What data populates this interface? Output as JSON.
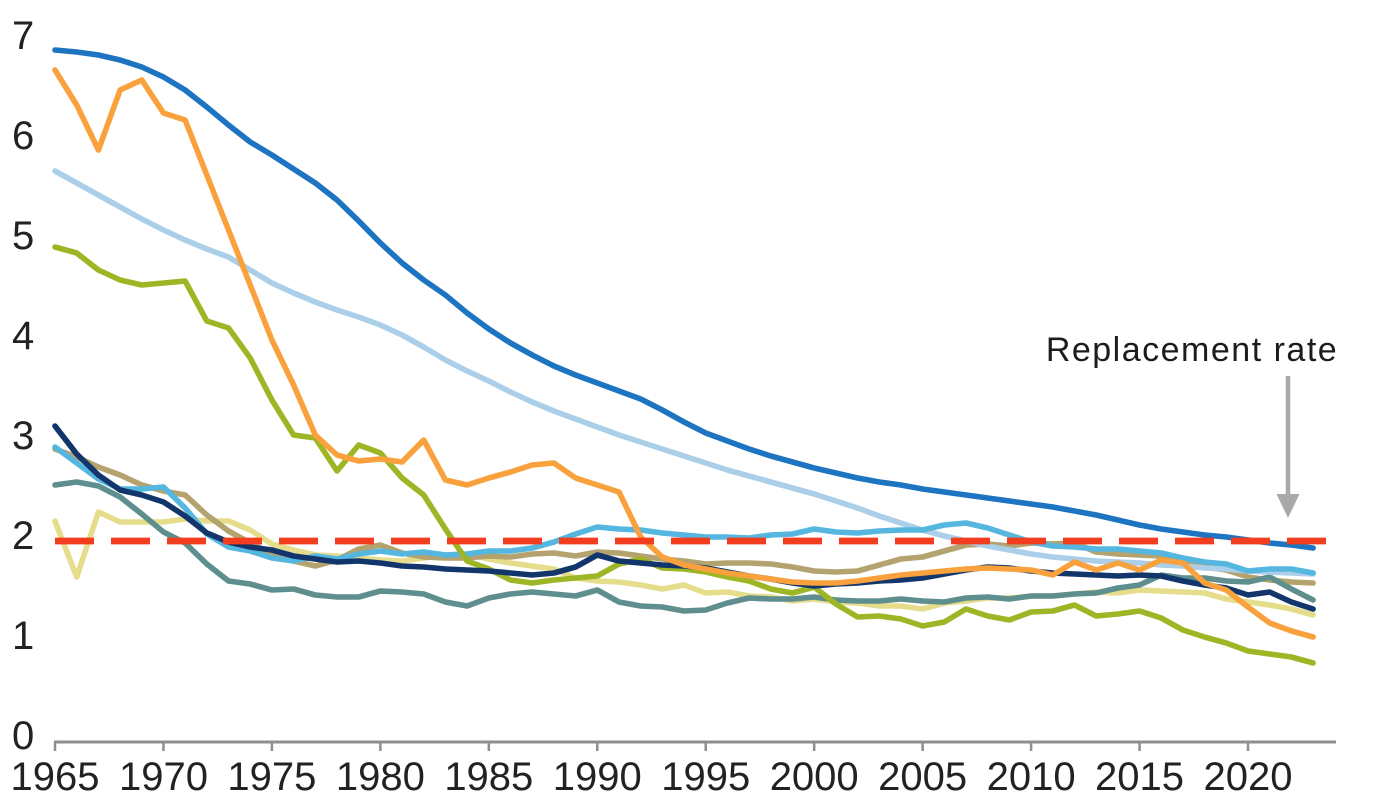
{
  "annotation": {
    "label": "Replacement rate"
  },
  "styles": {
    "background": "#ffffff",
    "axis_color": "#8f8f8f",
    "tick_color": "#8f8f8f",
    "text_color": "#222222",
    "arrow_color": "#a9a9a9",
    "reference_color": "#f23d1f"
  },
  "chart_data": {
    "type": "line",
    "title": "",
    "xlabel": "",
    "ylabel": "",
    "grid": false,
    "legend": "none",
    "ylim": [
      0,
      7
    ],
    "xlim": [
      1965,
      2024
    ],
    "y_ticks": [
      0,
      1,
      2,
      3,
      4,
      5,
      6,
      7
    ],
    "y_tick_labels": [
      "0",
      "1",
      "2",
      "3",
      "4",
      "5",
      "6",
      "7"
    ],
    "x_ticks": [
      1965,
      1970,
      1975,
      1980,
      1985,
      1990,
      1995,
      2000,
      2005,
      2010,
      2015,
      2020
    ],
    "x_tick_labels": [
      "1965",
      "1970",
      "1975",
      "1980",
      "1985",
      "1990",
      "1995",
      "2000",
      "2005",
      "2010",
      "2015",
      "2020"
    ],
    "x_start_year": 1965,
    "x_end_year": 2023,
    "reference_line": {
      "label": "Replacement rate",
      "value": 2.1,
      "color": "#f23d1f",
      "style": "dashed"
    },
    "series": [
      {
        "name": "pale-yellow-line",
        "color": "#e5dd8c",
        "values": [
          2.14,
          1.58,
          2.23,
          2.13,
          2.13,
          2.13,
          2.16,
          2.14,
          2.14,
          2.05,
          1.91,
          1.85,
          1.8,
          1.79,
          1.77,
          1.75,
          1.74,
          1.77,
          1.8,
          1.81,
          1.76,
          1.72,
          1.69,
          1.66,
          1.57,
          1.54,
          1.53,
          1.5,
          1.46,
          1.5,
          1.42,
          1.43,
          1.39,
          1.38,
          1.34,
          1.36,
          1.33,
          1.32,
          1.29,
          1.29,
          1.26,
          1.32,
          1.34,
          1.37,
          1.37,
          1.39,
          1.39,
          1.41,
          1.43,
          1.42,
          1.45,
          1.44,
          1.43,
          1.42,
          1.36,
          1.33,
          1.3,
          1.26,
          1.2
        ]
      },
      {
        "name": "tan-line",
        "color": "#b4a36e",
        "values": [
          2.86,
          2.78,
          2.68,
          2.6,
          2.5,
          2.44,
          2.4,
          2.2,
          2.04,
          1.92,
          1.81,
          1.74,
          1.69,
          1.75,
          1.86,
          1.9,
          1.82,
          1.78,
          1.77,
          1.77,
          1.79,
          1.78,
          1.81,
          1.82,
          1.79,
          1.83,
          1.82,
          1.79,
          1.76,
          1.74,
          1.71,
          1.72,
          1.72,
          1.71,
          1.68,
          1.64,
          1.63,
          1.64,
          1.7,
          1.76,
          1.78,
          1.84,
          1.9,
          1.91,
          1.89,
          1.92,
          1.91,
          1.92,
          1.83,
          1.81,
          1.8,
          1.79,
          1.74,
          1.68,
          1.65,
          1.58,
          1.55,
          1.53,
          1.52
        ]
      },
      {
        "name": "teal-line",
        "color": "#5e8e8e",
        "values": [
          2.5,
          2.53,
          2.49,
          2.38,
          2.21,
          2.03,
          1.92,
          1.71,
          1.54,
          1.51,
          1.45,
          1.46,
          1.4,
          1.38,
          1.38,
          1.44,
          1.43,
          1.41,
          1.33,
          1.29,
          1.37,
          1.41,
          1.43,
          1.41,
          1.39,
          1.45,
          1.33,
          1.29,
          1.28,
          1.24,
          1.25,
          1.32,
          1.37,
          1.36,
          1.36,
          1.38,
          1.35,
          1.34,
          1.34,
          1.36,
          1.34,
          1.33,
          1.37,
          1.38,
          1.36,
          1.39,
          1.39,
          1.41,
          1.42,
          1.47,
          1.5,
          1.6,
          1.57,
          1.57,
          1.54,
          1.53,
          1.58,
          1.46,
          1.35
        ]
      },
      {
        "name": "light-blue-line",
        "color": "#abcfe9",
        "values": [
          5.64,
          5.52,
          5.4,
          5.28,
          5.16,
          5.05,
          4.95,
          4.86,
          4.78,
          4.65,
          4.52,
          4.42,
          4.33,
          4.25,
          4.18,
          4.1,
          4.0,
          3.88,
          3.75,
          3.64,
          3.54,
          3.43,
          3.33,
          3.24,
          3.16,
          3.08,
          3.0,
          2.93,
          2.86,
          2.79,
          2.72,
          2.65,
          2.59,
          2.53,
          2.47,
          2.41,
          2.34,
          2.27,
          2.19,
          2.12,
          2.05,
          1.99,
          1.94,
          1.89,
          1.85,
          1.81,
          1.78,
          1.76,
          1.74,
          1.73,
          1.72,
          1.7,
          1.69,
          1.67,
          1.66,
          1.64,
          1.63,
          1.62,
          1.61
        ]
      },
      {
        "name": "sky-blue-line",
        "color": "#55b6e0",
        "values": [
          2.88,
          2.72,
          2.56,
          2.46,
          2.46,
          2.48,
          2.27,
          2.01,
          1.88,
          1.84,
          1.77,
          1.74,
          1.79,
          1.76,
          1.81,
          1.84,
          1.81,
          1.83,
          1.8,
          1.81,
          1.84,
          1.84,
          1.87,
          1.93,
          2.01,
          2.08,
          2.06,
          2.05,
          2.02,
          2.0,
          1.98,
          1.98,
          1.97,
          2.0,
          2.01,
          2.06,
          2.03,
          2.02,
          2.04,
          2.05,
          2.05,
          2.1,
          2.12,
          2.07,
          2.0,
          1.93,
          1.89,
          1.88,
          1.86,
          1.86,
          1.84,
          1.82,
          1.77,
          1.73,
          1.71,
          1.64,
          1.66,
          1.66,
          1.62
        ]
      },
      {
        "name": "olive-green-line",
        "color": "#9eb625",
        "values": [
          4.88,
          4.82,
          4.65,
          4.55,
          4.5,
          4.52,
          4.54,
          4.14,
          4.07,
          3.77,
          3.35,
          3.0,
          2.97,
          2.64,
          2.9,
          2.82,
          2.57,
          2.4,
          2.06,
          1.74,
          1.66,
          1.55,
          1.52,
          1.55,
          1.57,
          1.59,
          1.71,
          1.76,
          1.67,
          1.66,
          1.63,
          1.58,
          1.54,
          1.46,
          1.42,
          1.48,
          1.31,
          1.18,
          1.19,
          1.16,
          1.09,
          1.13,
          1.26,
          1.19,
          1.15,
          1.23,
          1.24,
          1.3,
          1.19,
          1.21,
          1.24,
          1.17,
          1.05,
          0.98,
          0.92,
          0.84,
          0.81,
          0.78,
          0.72
        ]
      },
      {
        "name": "navy-line",
        "color": "#12366b",
        "values": [
          3.09,
          2.81,
          2.6,
          2.45,
          2.4,
          2.33,
          2.19,
          2.02,
          1.93,
          1.88,
          1.85,
          1.79,
          1.76,
          1.73,
          1.74,
          1.72,
          1.69,
          1.68,
          1.66,
          1.65,
          1.64,
          1.62,
          1.6,
          1.62,
          1.68,
          1.8,
          1.74,
          1.72,
          1.7,
          1.69,
          1.67,
          1.63,
          1.59,
          1.56,
          1.52,
          1.49,
          1.51,
          1.52,
          1.54,
          1.55,
          1.57,
          1.61,
          1.65,
          1.68,
          1.67,
          1.64,
          1.62,
          1.61,
          1.6,
          1.59,
          1.6,
          1.59,
          1.54,
          1.5,
          1.47,
          1.4,
          1.43,
          1.33,
          1.26
        ]
      },
      {
        "name": "orange-line",
        "color": "#f9a13c",
        "values": [
          6.65,
          6.3,
          5.85,
          6.45,
          6.55,
          6.22,
          6.15,
          5.6,
          5.05,
          4.5,
          3.95,
          3.5,
          3.0,
          2.8,
          2.74,
          2.76,
          2.73,
          2.95,
          2.55,
          2.5,
          2.57,
          2.63,
          2.7,
          2.72,
          2.57,
          2.5,
          2.43,
          1.98,
          1.78,
          1.7,
          1.66,
          1.62,
          1.59,
          1.56,
          1.53,
          1.52,
          1.52,
          1.54,
          1.57,
          1.6,
          1.62,
          1.64,
          1.66,
          1.67,
          1.66,
          1.65,
          1.6,
          1.73,
          1.65,
          1.72,
          1.65,
          1.75,
          1.72,
          1.52,
          1.45,
          1.28,
          1.12,
          1.04,
          0.98
        ]
      },
      {
        "name": "blue-line",
        "color": "#1d74c0",
        "values": [
          6.85,
          6.83,
          6.8,
          6.75,
          6.68,
          6.58,
          6.45,
          6.28,
          6.1,
          5.93,
          5.8,
          5.66,
          5.52,
          5.35,
          5.14,
          4.92,
          4.72,
          4.55,
          4.4,
          4.22,
          4.06,
          3.92,
          3.8,
          3.69,
          3.6,
          3.52,
          3.44,
          3.36,
          3.25,
          3.13,
          3.02,
          2.94,
          2.86,
          2.79,
          2.73,
          2.67,
          2.62,
          2.57,
          2.53,
          2.5,
          2.46,
          2.43,
          2.4,
          2.37,
          2.34,
          2.31,
          2.28,
          2.24,
          2.2,
          2.15,
          2.1,
          2.06,
          2.03,
          2.0,
          1.98,
          1.95,
          1.92,
          1.9,
          1.87
        ]
      }
    ]
  }
}
